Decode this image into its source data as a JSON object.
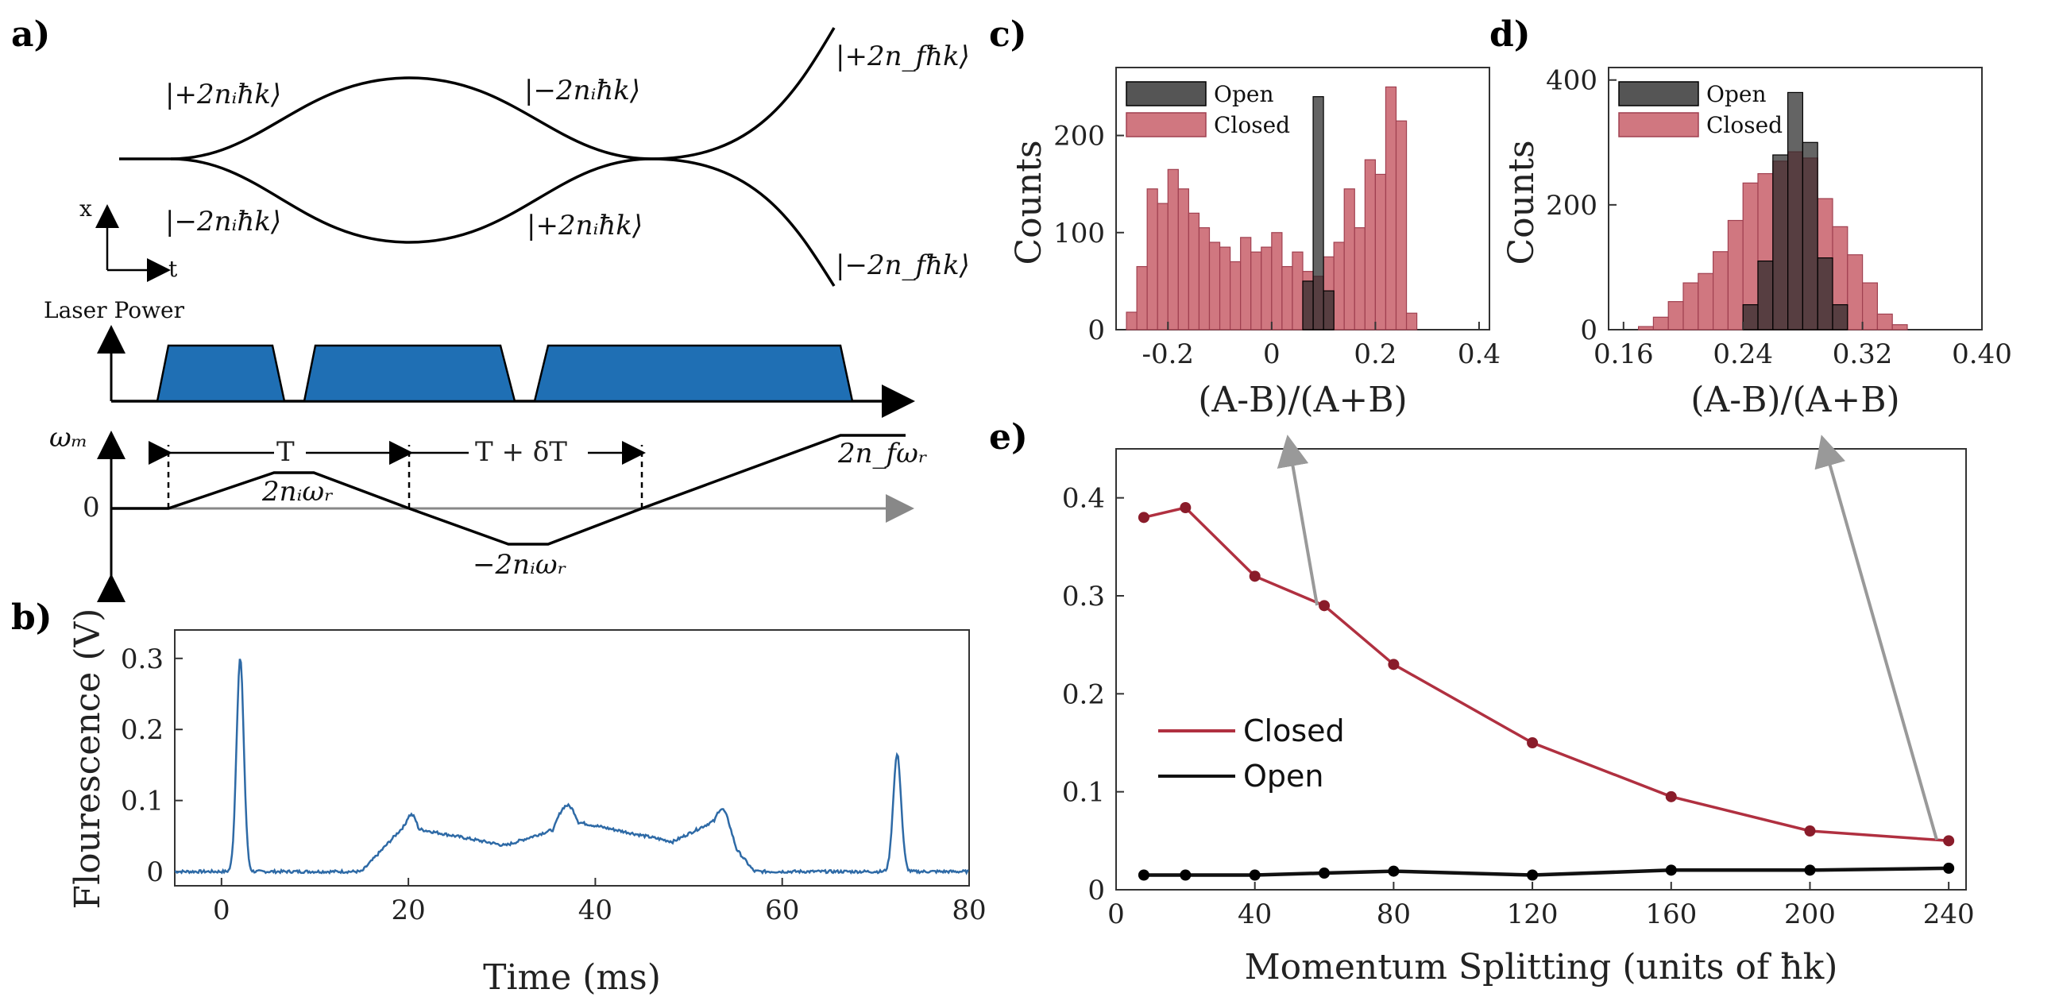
{
  "panels": {
    "a": {
      "letter": "a)",
      "kets": {
        "upper_left": "|+2nᵢħk⟩",
        "lower_left": "|−2nᵢħk⟩",
        "upper_mid": "|−2nᵢħk⟩",
        "lower_mid": "|+2nᵢħk⟩",
        "upper_right": "|+2n_fħk⟩",
        "lower_right": "|−2n_fħk⟩"
      },
      "axis_x": "x",
      "axis_t": "t",
      "laser_label": "Laser Power",
      "omega_label": "ωₘ",
      "zero_label": "0",
      "T_label": "T",
      "T_dT_label": "T + δT",
      "omega_up": "2nᵢωᵣ",
      "omega_down": "−2nᵢωᵣ",
      "omega_final": "2n_fωᵣ",
      "colors": {
        "pulse": "#1f6fb4",
        "axis": "#000000",
        "gray_axis": "#888888"
      }
    },
    "b": {
      "letter": "b)",
      "xlabel": "Time (ms)",
      "ylabel": "Flourescence (V)",
      "xticks": [
        "0",
        "20",
        "40",
        "60",
        "80"
      ],
      "yticks": [
        "0",
        "0.1",
        "0.2",
        "0.3"
      ],
      "color": "#2e6aa6"
    },
    "c": {
      "letter": "c)",
      "xlabel": "(A-B)/(A+B)",
      "ylabel": "Counts",
      "xticks": [
        "-0.2",
        "0",
        "0.2",
        "0.4"
      ],
      "yticks": [
        "0",
        "100",
        "200"
      ],
      "legend": [
        "Open",
        "Closed"
      ]
    },
    "d": {
      "letter": "d)",
      "xlabel": "(A-B)/(A+B)",
      "ylabel": "Counts",
      "xticks": [
        "0.16",
        "0.24",
        "0.32",
        "0.40"
      ],
      "yticks": [
        "0",
        "200",
        "400"
      ],
      "legend": [
        "Open",
        "Closed"
      ]
    },
    "e": {
      "letter": "e)",
      "xlabel": "Momentum Splitting (units of ħk)",
      "xticks": [
        "0",
        "40",
        "80",
        "120",
        "160",
        "200",
        "240"
      ],
      "yticks": [
        "0",
        "0.1",
        "0.2",
        "0.3",
        "0.4"
      ],
      "legend": [
        "Closed",
        "Open"
      ],
      "colors": {
        "closed": "#b03040",
        "open": "#111111"
      }
    }
  },
  "chart_data": [
    {
      "id": "b",
      "type": "line",
      "title": "",
      "xlabel": "Time (ms)",
      "ylabel": "Flourescence (V)",
      "xlim": [
        -5,
        80
      ],
      "ylim": [
        -0.02,
        0.34
      ],
      "peaks": [
        {
          "x": 2,
          "height": 0.3,
          "width": 0.55
        },
        {
          "x": 20.3,
          "height": 0.08,
          "width": 1.5
        },
        {
          "x": 37,
          "height": 0.093,
          "width": 2.2
        },
        {
          "x": 53.5,
          "height": 0.088,
          "width": 1.6
        },
        {
          "x": 72.3,
          "height": 0.165,
          "width": 0.6
        }
      ],
      "plateaus": [
        {
          "x0": 21,
          "x1": 31,
          "from": 0.06,
          "to": 0.035
        },
        {
          "x0": 38,
          "x1": 49,
          "from": 0.07,
          "to": 0.04
        }
      ]
    },
    {
      "id": "c",
      "type": "bar",
      "xlabel": "(A-B)/(A+B)",
      "ylabel": "Counts",
      "xlim": [
        -0.3,
        0.42
      ],
      "ylim": [
        0,
        270
      ],
      "bin_width": 0.02,
      "closed_bins_start": -0.28,
      "closed": [
        18,
        65,
        145,
        130,
        165,
        145,
        120,
        105,
        90,
        85,
        70,
        95,
        80,
        85,
        100,
        65,
        80,
        60,
        55,
        75,
        90,
        145,
        105,
        175,
        160,
        250,
        215,
        17
      ],
      "open_bins_start": 0.06,
      "open": [
        50,
        240,
        40
      ]
    },
    {
      "id": "d",
      "type": "bar",
      "xlabel": "(A-B)/(A+B)",
      "ylabel": "Counts",
      "xlim": [
        0.15,
        0.4
      ],
      "ylim": [
        0,
        420
      ],
      "bin_width": 0.01,
      "closed_bins_start": 0.17,
      "closed": [
        5,
        20,
        45,
        75,
        90,
        125,
        175,
        235,
        250,
        270,
        285,
        275,
        210,
        165,
        120,
        75,
        25,
        8
      ],
      "open_bins_start": 0.24,
      "open": [
        40,
        110,
        280,
        380,
        300,
        115,
        40
      ]
    },
    {
      "id": "e",
      "type": "line",
      "xlabel": "Momentum Splitting (units of ħk)",
      "ylabel": "",
      "xlim": [
        0,
        245
      ],
      "ylim": [
        0,
        0.45
      ],
      "x": [
        8,
        20,
        40,
        60,
        80,
        120,
        160,
        200,
        240
      ],
      "series": [
        {
          "name": "Closed",
          "values": [
            0.38,
            0.39,
            0.32,
            0.29,
            0.23,
            0.15,
            0.095,
            0.06,
            0.05
          ]
        },
        {
          "name": "Open",
          "values": [
            0.015,
            0.015,
            0.015,
            0.017,
            0.019,
            0.015,
            0.02,
            0.02,
            0.022
          ]
        }
      ],
      "annotation_arrows": [
        {
          "from_x": 60,
          "from_y": 0.29,
          "to_panel": "c"
        },
        {
          "from_x": 240,
          "from_y": 0.05,
          "to_panel": "d"
        }
      ]
    }
  ]
}
